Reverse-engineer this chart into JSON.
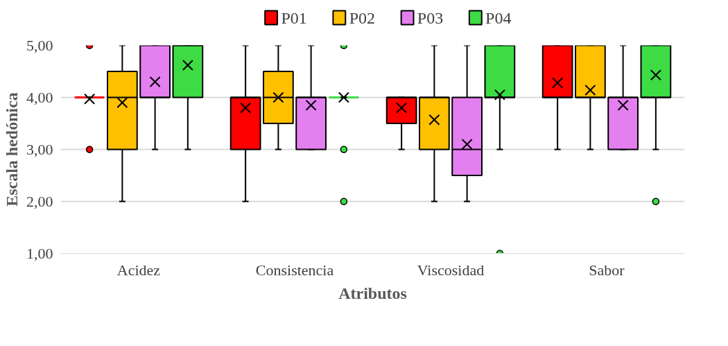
{
  "chart_data": {
    "type": "box",
    "xlabel": "Atributos",
    "ylabel": "Escala hedónica",
    "categories": [
      "Acidez",
      "Consistencia",
      "Viscosidad",
      "Sabor"
    ],
    "ylim": [
      1,
      5
    ],
    "yticks": [
      {
        "value": 1,
        "label": "1,00"
      },
      {
        "value": 2,
        "label": "2,00"
      },
      {
        "value": 3,
        "label": "3,00"
      },
      {
        "value": 4,
        "label": "4,00"
      },
      {
        "value": 5,
        "label": "5,00"
      }
    ],
    "grid": "y",
    "legend": "top",
    "marker": "circle",
    "series": [
      {
        "name": "P01",
        "color": "#ff0000",
        "boxes": [
          {
            "low": 4,
            "q1": 4,
            "median": 4,
            "q3": 4,
            "high": 4,
            "mean": 3.97,
            "outliers": [
              5,
              3
            ]
          },
          {
            "low": 2,
            "q1": 3,
            "median": 4,
            "q3": 4,
            "high": 5,
            "mean": 3.8
          },
          {
            "low": 3,
            "q1": 3.5,
            "median": 4,
            "q3": 4,
            "high": 4,
            "mean": 3.8
          },
          {
            "low": 3,
            "q1": 4,
            "median": 4,
            "q3": 5,
            "high": 5,
            "mean": 4.28
          }
        ]
      },
      {
        "name": "P02",
        "color": "#ffc000",
        "boxes": [
          {
            "low": 2,
            "q1": 3,
            "median": 4,
            "q3": 4.5,
            "high": 5,
            "mean": 3.9
          },
          {
            "low": 3,
            "q1": 3.5,
            "median": 4,
            "q3": 4.5,
            "high": 5,
            "mean": 4.0
          },
          {
            "low": 2,
            "q1": 3,
            "median": 4,
            "q3": 4,
            "high": 5,
            "mean": 3.57
          },
          {
            "low": 3,
            "q1": 4,
            "median": 4,
            "q3": 5,
            "high": 5,
            "mean": 4.14
          }
        ]
      },
      {
        "name": "P03",
        "color": "#e47ff0",
        "boxes": [
          {
            "low": 3,
            "q1": 4,
            "median": 4,
            "q3": 5,
            "high": 5,
            "mean": 4.3
          },
          {
            "low": 3,
            "q1": 3,
            "median": 4,
            "q3": 4,
            "high": 5,
            "mean": 3.85
          },
          {
            "low": 2,
            "q1": 2.5,
            "median": 3,
            "q3": 4,
            "high": 5,
            "mean": 3.1
          },
          {
            "low": 3,
            "q1": 3,
            "median": 4,
            "q3": 4,
            "high": 5,
            "mean": 3.85
          }
        ]
      },
      {
        "name": "P04",
        "color": "#3ddc44",
        "boxes": [
          {
            "low": 3,
            "q1": 4,
            "median": 5,
            "q3": 5,
            "high": 5,
            "mean": 4.62
          },
          {
            "low": 4,
            "q1": 4,
            "median": 4,
            "q3": 4,
            "high": 4,
            "mean": 4.0,
            "outliers": [
              5,
              3,
              2
            ]
          },
          {
            "low": 3,
            "q1": 4,
            "median": 4,
            "q3": 5,
            "high": 5,
            "mean": 4.05,
            "outliers": [
              1
            ]
          },
          {
            "low": 3,
            "q1": 4,
            "median": 4,
            "q3": 5,
            "high": 5,
            "mean": 4.43,
            "outliers": [
              2
            ]
          }
        ]
      }
    ]
  }
}
